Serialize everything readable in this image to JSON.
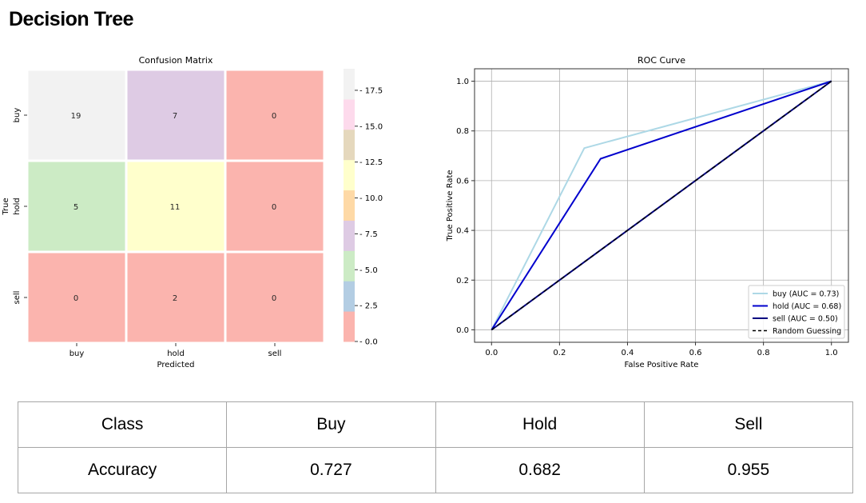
{
  "page": {
    "title": "Decision Tree"
  },
  "chart_data": [
    {
      "type": "heatmap",
      "title": "Confusion Matrix",
      "xlabel": "Predicted",
      "ylabel": "True",
      "x_categories": [
        "buy",
        "hold",
        "sell"
      ],
      "y_categories": [
        "buy",
        "hold",
        "sell"
      ],
      "values": [
        [
          19,
          7,
          0
        ],
        [
          5,
          11,
          0
        ],
        [
          0,
          2,
          0
        ]
      ],
      "colorbar": {
        "range": [
          0,
          19
        ],
        "ticks": [
          "0.0",
          "2.5",
          "5.0",
          "7.5",
          "10.0",
          "12.5",
          "15.0",
          "17.5"
        ],
        "colors": [
          "#fbb4ae",
          "#b3cde3",
          "#ccebc5",
          "#decbe4",
          "#fed9a6",
          "#ffffcc",
          "#e5d8bd",
          "#fddaec",
          "#f2f2f2"
        ]
      }
    },
    {
      "type": "line",
      "title": "ROC Curve",
      "xlabel": "False Positive Rate",
      "ylabel": "True Positive Rate",
      "xlim": [
        -0.05,
        1.05
      ],
      "ylim": [
        -0.05,
        1.05
      ],
      "grid": true,
      "legend_position": "lower-right",
      "x_ticks": [
        "0.0",
        "0.2",
        "0.4",
        "0.6",
        "0.8",
        "1.0"
      ],
      "y_ticks": [
        "0.0",
        "0.2",
        "0.4",
        "0.6",
        "0.8",
        "1.0"
      ],
      "series": [
        {
          "name": "buy (AUC = 0.73)",
          "color": "#add8e6",
          "dash": false,
          "x": [
            0,
            0.273,
            1
          ],
          "y": [
            0,
            0.731,
            1
          ]
        },
        {
          "name": "hold (AUC = 0.68)",
          "color": "#0000cd",
          "dash": false,
          "x": [
            0,
            0.321,
            1
          ],
          "y": [
            0,
            0.688,
            1
          ]
        },
        {
          "name": "sell (AUC = 0.50)",
          "color": "#000080",
          "dash": false,
          "x": [
            0,
            1
          ],
          "y": [
            0,
            1
          ]
        },
        {
          "name": "Random Guessing",
          "color": "#000000",
          "dash": true,
          "x": [
            0,
            1
          ],
          "y": [
            0,
            1
          ]
        }
      ]
    }
  ],
  "metrics_table": {
    "header": [
      "Class",
      "Buy",
      "Hold",
      "Sell"
    ],
    "rows": [
      [
        "Accuracy",
        "0.727",
        "0.682",
        "0.955"
      ]
    ]
  }
}
